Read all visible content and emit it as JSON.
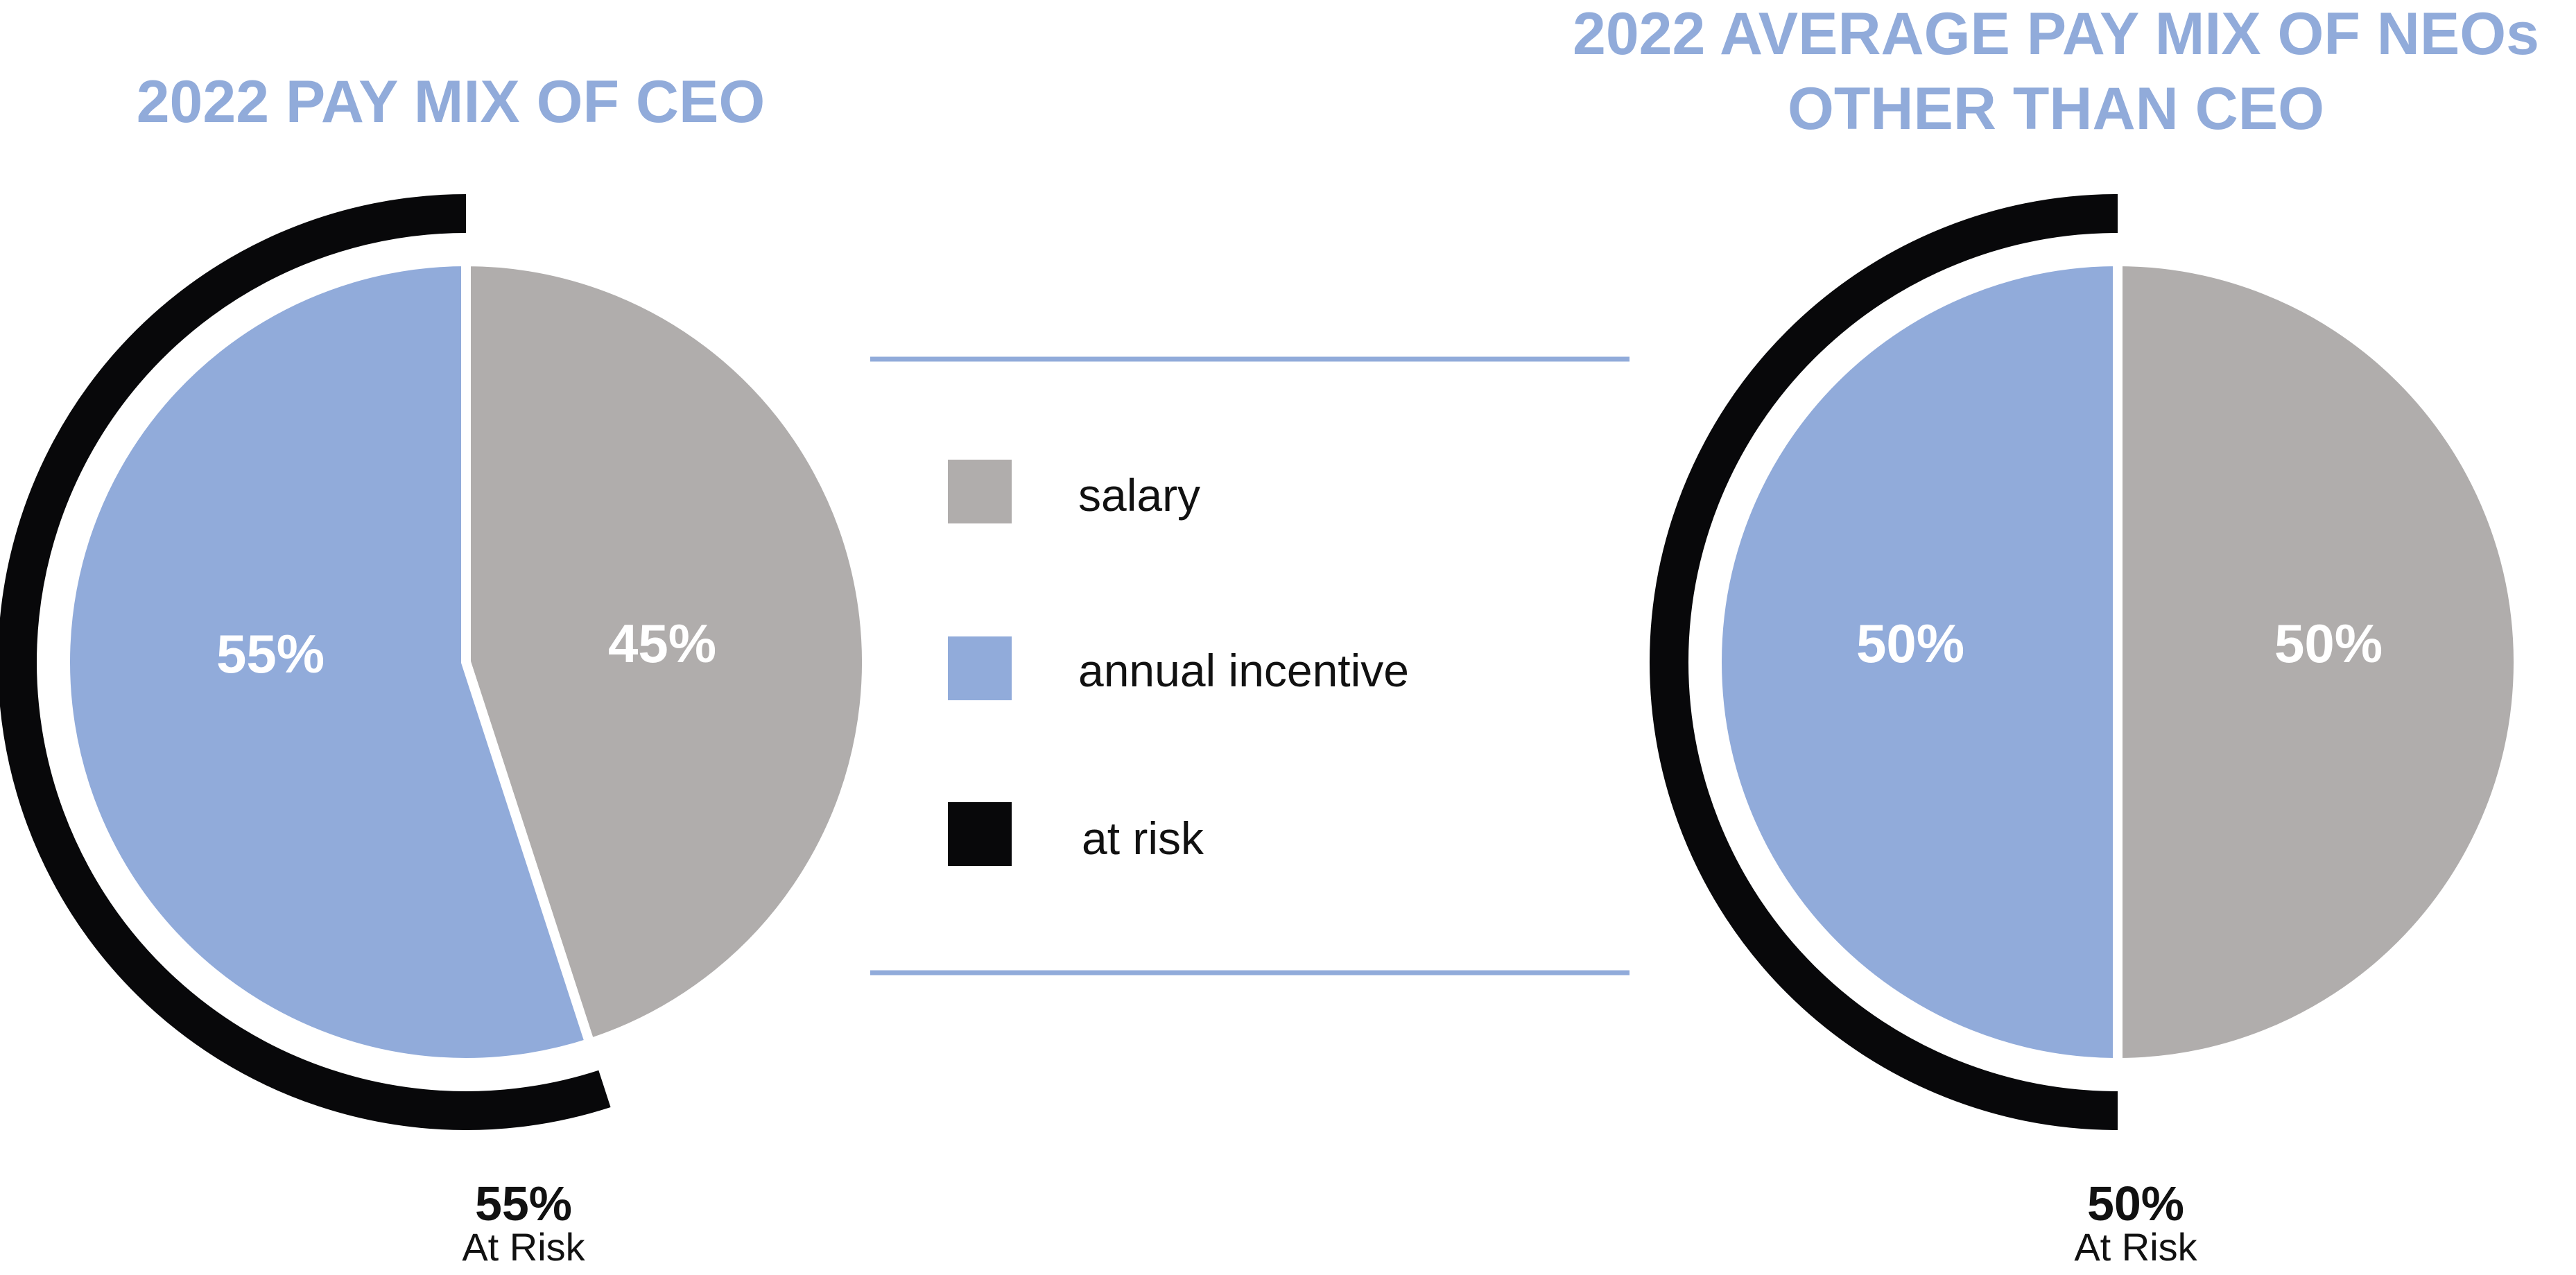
{
  "colors": {
    "salary": "#b0adac",
    "annual_incentive": "#91abda",
    "at_risk": "#08080a",
    "title": "#91abda",
    "divider": "#91abda"
  },
  "legend": {
    "items": [
      {
        "key": "salary",
        "label": "salary"
      },
      {
        "key": "annual_incentive",
        "label": "annual incentive"
      },
      {
        "key": "at_risk",
        "label": "at risk"
      }
    ]
  },
  "chart_data": [
    {
      "type": "pie",
      "title": "2022 PAY MIX OF CEO",
      "slices": [
        {
          "name": "salary",
          "value": 45,
          "label": "45%"
        },
        {
          "name": "annual incentive",
          "value": 55,
          "label": "55%"
        }
      ],
      "at_risk": {
        "value": 55,
        "pct_label": "55%",
        "text": "At Risk"
      }
    },
    {
      "type": "pie",
      "title_lines": [
        "2022 AVERAGE PAY MIX OF NEOs",
        "OTHER THAN CEO"
      ],
      "slices": [
        {
          "name": "salary",
          "value": 50,
          "label": "50%"
        },
        {
          "name": "annual incentive",
          "value": 50,
          "label": "50%"
        }
      ],
      "at_risk": {
        "value": 50,
        "pct_label": "50%",
        "text": "At Risk"
      }
    }
  ]
}
